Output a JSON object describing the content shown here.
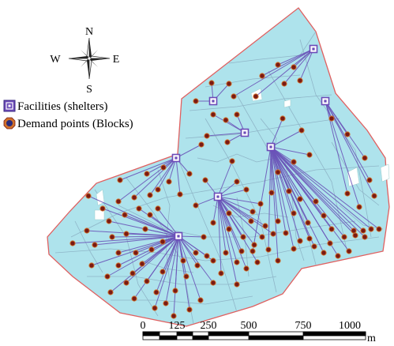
{
  "compass": {
    "north": "N",
    "south": "S",
    "east": "E",
    "west": "W"
  },
  "legend": {
    "facilities_label": "Facilities (shelters)",
    "demand_label": "Demand points (Blocks)",
    "facility_icon": "square-shelter-icon",
    "demand_icon": "octagon-block-icon"
  },
  "scale_bar": {
    "ticks": [
      "0",
      "125",
      "250",
      "500",
      "750",
      "1000"
    ],
    "unit": "m"
  },
  "colors": {
    "area_fill": "#aee3ec",
    "area_border": "#e06060",
    "street_lines": "#8fb6c8",
    "allocation_lines": "#6a54b8",
    "facility_fill": "#6c4bb8",
    "demand_fill": "#7a1a14",
    "demand_ring": "#d0702a",
    "open_space": "#ffffff"
  }
}
